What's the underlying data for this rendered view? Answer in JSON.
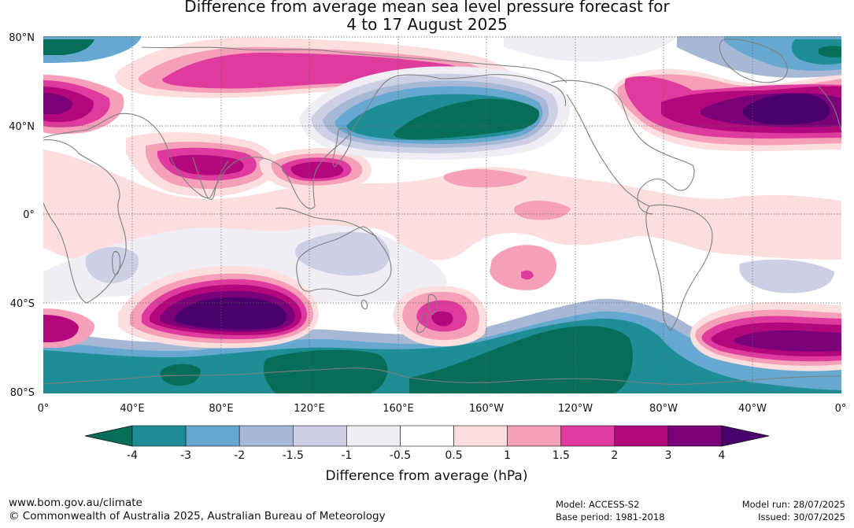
{
  "title": {
    "line1": "Difference from average mean sea level pressure forecast for",
    "line2": "4 to 17 August 2025"
  },
  "map": {
    "lat_labels": [
      "80°N",
      "40°N",
      "0°",
      "40°S",
      "80°S"
    ],
    "lon_labels": [
      "0°",
      "40°E",
      "80°E",
      "120°E",
      "160°E",
      "160°W",
      "120°W",
      "80°W",
      "40°W",
      "0°"
    ],
    "colors": {
      "deep_teal": "#066e58",
      "teal": "#1e8e96",
      "blue": "#66a8cf",
      "grey_blue": "#a7b8d6",
      "lavender": "#cdcfe5",
      "pale_lavender": "#f0edf4",
      "white": "#ffffff",
      "pale_pink": "#fcdede",
      "pink": "#f59fb8",
      "magenta": "#df3a9e",
      "deep_magenta": "#b3087d",
      "purple": "#7a0177",
      "deep_purple": "#49006a",
      "coast": "#7f7f7f"
    }
  },
  "legend": {
    "ticks": [
      "-4",
      "-3",
      "-2",
      "-1.5",
      "-1",
      "-0.5",
      "0.5",
      "1",
      "1.5",
      "2",
      "3",
      "4"
    ],
    "label": "Difference from average (hPa)",
    "bins": [
      "#066e58",
      "#1e8e96",
      "#66a8cf",
      "#a7b8d6",
      "#cdcfe5",
      "#f0edf4",
      "#ffffff",
      "#fcdede",
      "#f59fb8",
      "#df3a9e",
      "#b3087d",
      "#7a0177",
      "#49006a"
    ]
  },
  "footer": {
    "website": "www.bom.gov.au/climate",
    "copyright": "© Commonwealth of Australia 2025, Australian Bureau of Meteorology",
    "model": "Model: ACCESS-S2",
    "base_period": "Base period: 1981-2018",
    "model_run": "Model run: 28/07/2025",
    "issued": "Issued: 30/07/2025"
  }
}
